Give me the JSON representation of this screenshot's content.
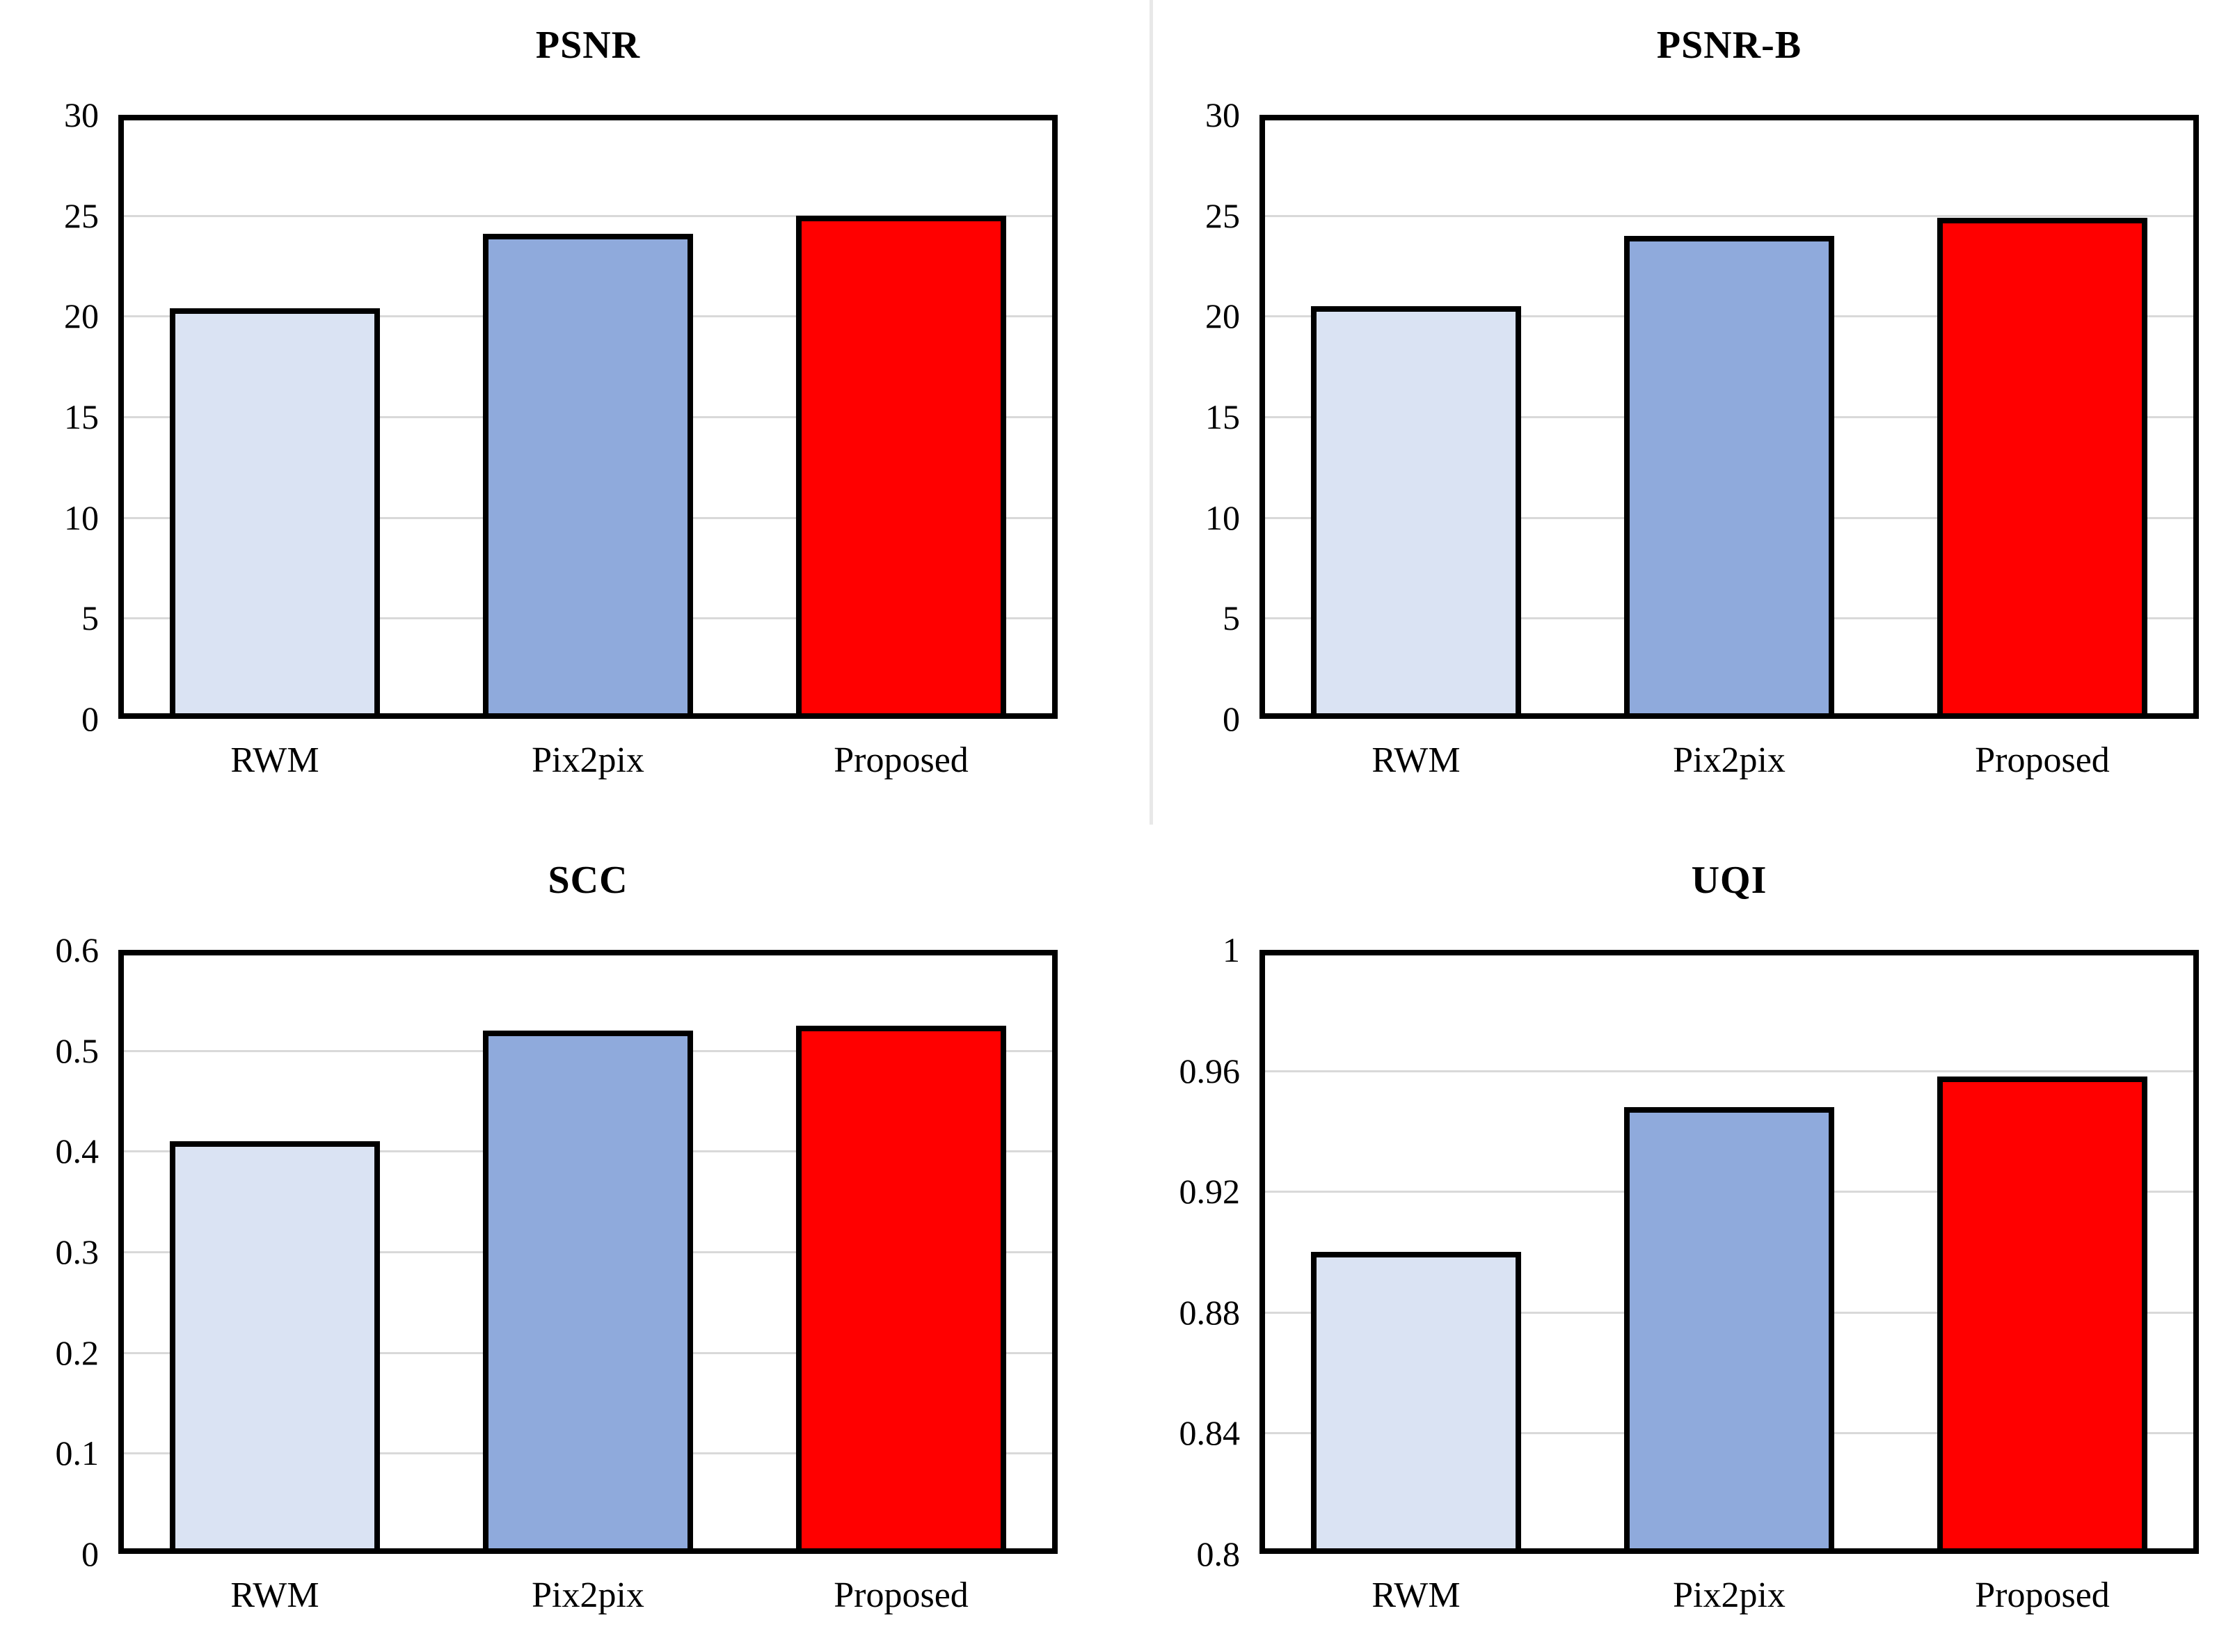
{
  "figure": {
    "background": "#ffffff",
    "divider_color": "#e8e8e8",
    "grid_color": "#d9d9d9",
    "bar_border_color": "#000000",
    "text_color": "#000000"
  },
  "chart_data": [
    {
      "id": "psnr",
      "type": "bar",
      "title": "PSNR",
      "categories": [
        "RWM",
        "Pix2pix",
        "Proposed"
      ],
      "values": [
        20.4,
        24.1,
        25.0
      ],
      "bar_colors": [
        "#dae3f3",
        "#8faadc",
        "#ff0000"
      ],
      "ylim": [
        0,
        30
      ],
      "ytick_step": 5,
      "ytick_labels": [
        "0",
        "5",
        "10",
        "15",
        "20",
        "25",
        "30"
      ],
      "xlabel": "",
      "ylabel": "",
      "grid": "horizontal",
      "legend": "none"
    },
    {
      "id": "psnr-b",
      "type": "bar",
      "title": "PSNR-B",
      "categories": [
        "RWM",
        "Pix2pix",
        "Proposed"
      ],
      "values": [
        20.5,
        24.0,
        24.9
      ],
      "bar_colors": [
        "#dae3f3",
        "#8faadc",
        "#ff0000"
      ],
      "ylim": [
        0,
        30
      ],
      "ytick_step": 5,
      "ytick_labels": [
        "0",
        "5",
        "10",
        "15",
        "20",
        "25",
        "30"
      ],
      "xlabel": "",
      "ylabel": "",
      "grid": "horizontal",
      "legend": "none"
    },
    {
      "id": "scc",
      "type": "bar",
      "title": "SCC",
      "categories": [
        "RWM",
        "Pix2pix",
        "Proposed"
      ],
      "values": [
        0.41,
        0.52,
        0.525
      ],
      "bar_colors": [
        "#dae3f3",
        "#8faadc",
        "#ff0000"
      ],
      "ylim": [
        0,
        0.6
      ],
      "ytick_step": 0.1,
      "ytick_labels": [
        "0",
        "0.1",
        "0.2",
        "0.3",
        "0.4",
        "0.5",
        "0.6"
      ],
      "xlabel": "",
      "ylabel": "",
      "grid": "horizontal",
      "legend": "none"
    },
    {
      "id": "uqi",
      "type": "bar",
      "title": "UQI",
      "categories": [
        "RWM",
        "Pix2pix",
        "Proposed"
      ],
      "values": [
        0.9,
        0.948,
        0.958
      ],
      "bar_colors": [
        "#dae3f3",
        "#8faadc",
        "#ff0000"
      ],
      "ylim": [
        0.8,
        1.0
      ],
      "ytick_step": 0.04,
      "ytick_labels": [
        "0.8",
        "0.84",
        "0.88",
        "0.92",
        "0.96",
        "1"
      ],
      "xlabel": "",
      "ylabel": "",
      "grid": "horizontal",
      "legend": "none"
    }
  ]
}
